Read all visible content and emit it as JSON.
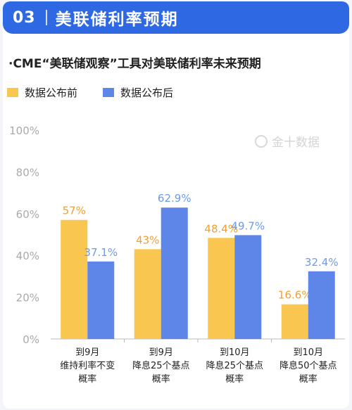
{
  "header": {
    "number": "03",
    "title": "美联储利率预期"
  },
  "subtitle": "·CME“美联储观察”工具对美联储利率未来预期",
  "watermark": "金十数据",
  "colors": {
    "before": "#f9c74f",
    "after": "#5e86e8",
    "before_label": "#f0a030",
    "after_label": "#6b9be8",
    "header": "#2f68e3"
  },
  "chart_data": {
    "type": "bar",
    "title": "",
    "xlabel": "",
    "ylabel": "",
    "ylim": [
      0,
      100
    ],
    "yticks": [
      "0%",
      "20%",
      "40%",
      "60%",
      "80%",
      "100%"
    ],
    "legend": "top-left",
    "grid": false,
    "categories": [
      [
        "到9月",
        "维持利率不变",
        "概率"
      ],
      [
        "到9月",
        "降息25个基点",
        "概率"
      ],
      [
        "到10月",
        "降息25个基点",
        "概率"
      ],
      [
        "到10月",
        "降息50个基点",
        "概率"
      ]
    ],
    "series": [
      {
        "name": "数据公布前",
        "values": [
          57,
          43,
          48.4,
          16.6
        ],
        "labels": [
          "57%",
          "43%",
          "48.4%",
          "16.6%"
        ]
      },
      {
        "name": "数据公布后",
        "values": [
          37.1,
          62.9,
          49.7,
          32.4
        ],
        "labels": [
          "37.1%",
          "62.9%",
          "49.7%",
          "32.4%"
        ]
      }
    ]
  }
}
